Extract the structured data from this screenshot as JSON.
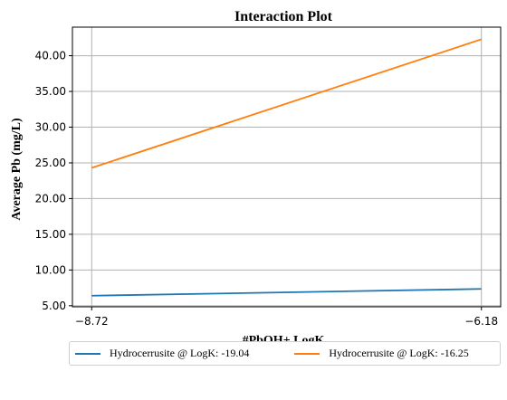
{
  "chart_data": {
    "type": "line",
    "title": "Interaction Plot",
    "xlabel": "#PbOH+ LogK",
    "ylabel": "Average Pb (mg/L)",
    "x": [
      -8.72,
      -6.18
    ],
    "x_tick_labels": [
      "−8.72",
      "−6.18"
    ],
    "xlim": [
      -8.72,
      -6.18
    ],
    "ylim": [
      4.85,
      44.0
    ],
    "y_ticks": [
      5.0,
      10.0,
      15.0,
      20.0,
      25.0,
      30.0,
      35.0,
      40.0
    ],
    "y_tick_labels": [
      "5.00",
      "10.00",
      "15.00",
      "20.00",
      "25.00",
      "30.00",
      "35.00",
      "40.00"
    ],
    "grid": true,
    "legend_position": "bottom",
    "series": [
      {
        "name": "Hydrocerrusite @ LogK: -19.04",
        "color": "#1f77b4",
        "values": [
          6.4,
          7.35
        ]
      },
      {
        "name": "Hydrocerrusite @ LogK: -16.25",
        "color": "#ff7f0e",
        "values": [
          24.3,
          42.3
        ]
      }
    ]
  }
}
